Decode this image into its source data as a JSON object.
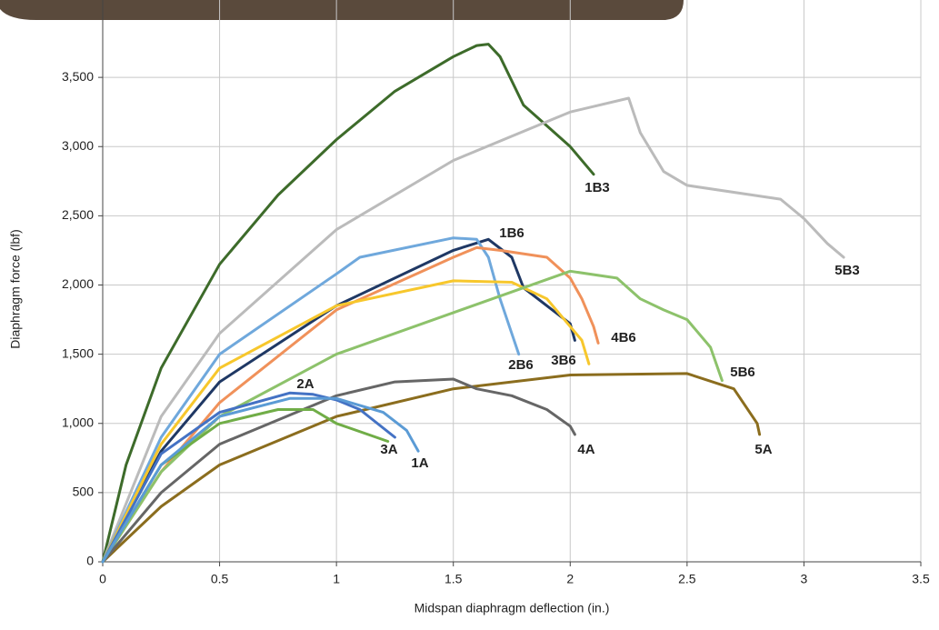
{
  "chart_data": {
    "type": "line",
    "xlabel": "Midspan diaphragm deflection (in.)",
    "ylabel": "Diaphragm force (lbf)",
    "xlim": [
      0,
      3.5
    ],
    "xticks": [
      0,
      0.5,
      1,
      1.5,
      2,
      2.5,
      3,
      3.5
    ],
    "ylim": [
      0,
      4000
    ],
    "yticks": [
      0,
      500,
      {
        "value": 1000,
        "label": "1,000"
      },
      {
        "value": 1500,
        "label": "1,500"
      },
      {
        "value": 2000,
        "label": "2,000"
      },
      {
        "value": 2500,
        "label": "2,500"
      },
      {
        "value": 3000,
        "label": "3,000"
      },
      {
        "value": 3500,
        "label": "3,500"
      }
    ],
    "grid": true,
    "series": [
      {
        "name": "1B3",
        "color": "#3d6b2a",
        "x": [
          0,
          0.1,
          0.25,
          0.5,
          0.75,
          1.0,
          1.25,
          1.5,
          1.6,
          1.65,
          1.7,
          1.8,
          1.9,
          2.0,
          2.1
        ],
        "values": [
          0,
          700,
          1400,
          2150,
          2650,
          3050,
          3400,
          3650,
          3730,
          3740,
          3650,
          3300,
          3150,
          3000,
          2800
        ]
      },
      {
        "name": "5B3",
        "color": "#bbbbbb",
        "x": [
          0,
          0.25,
          0.5,
          1,
          1.5,
          2,
          2.25,
          2.3,
          2.4,
          2.5,
          2.9,
          3.0,
          3.1,
          3.17
        ],
        "values": [
          0,
          1050,
          1650,
          2400,
          2900,
          3250,
          3350,
          3100,
          2820,
          2720,
          2620,
          2480,
          2300,
          2200
        ]
      },
      {
        "name": "1B6",
        "color": "#1f3864",
        "x": [
          0,
          0.25,
          0.5,
          1,
          1.5,
          1.65,
          1.75,
          1.8,
          1.9,
          2.0,
          2.02
        ],
        "values": [
          0,
          800,
          1300,
          1850,
          2250,
          2330,
          2200,
          1980,
          1850,
          1720,
          1600
        ]
      },
      {
        "name": "2B6",
        "color": "#6fa8dc",
        "x": [
          0,
          0.25,
          0.5,
          1,
          1.1,
          1.5,
          1.6,
          1.65,
          1.7,
          1.75,
          1.78
        ],
        "values": [
          0,
          900,
          1500,
          2080,
          2200,
          2340,
          2330,
          2200,
          1900,
          1650,
          1500
        ]
      },
      {
        "name": "4B6",
        "color": "#f0915a",
        "x": [
          0,
          0.25,
          0.5,
          1,
          1.5,
          1.6,
          1.7,
          1.9,
          2.0,
          2.05,
          2.1,
          2.12
        ],
        "values": [
          0,
          650,
          1150,
          1820,
          2200,
          2270,
          2250,
          2200,
          2050,
          1900,
          1700,
          1580
        ]
      },
      {
        "name": "3B6",
        "color": "#f7c72c",
        "x": [
          0,
          0.25,
          0.5,
          1,
          1.5,
          1.75,
          1.9,
          2.0,
          2.05,
          2.08
        ],
        "values": [
          0,
          850,
          1400,
          1850,
          2030,
          2020,
          1900,
          1700,
          1600,
          1430
        ]
      },
      {
        "name": "5B6",
        "color": "#8dc26b",
        "x": [
          0,
          0.25,
          0.5,
          1,
          1.5,
          2,
          2.2,
          2.3,
          2.4,
          2.5,
          2.6,
          2.65
        ],
        "values": [
          0,
          650,
          1050,
          1500,
          1800,
          2100,
          2050,
          1900,
          1820,
          1750,
          1550,
          1310
        ]
      },
      {
        "name": "5A",
        "color": "#8b6d1e",
        "x": [
          0,
          0.25,
          0.5,
          1,
          1.5,
          2,
          2.5,
          2.7,
          2.8,
          2.81
        ],
        "values": [
          0,
          400,
          700,
          1050,
          1250,
          1350,
          1360,
          1250,
          1000,
          920
        ]
      },
      {
        "name": "4A",
        "color": "#666666",
        "x": [
          0,
          0.25,
          0.5,
          1,
          1.25,
          1.5,
          1.6,
          1.75,
          1.9,
          2.0,
          2.02
        ],
        "values": [
          0,
          500,
          850,
          1200,
          1300,
          1320,
          1250,
          1200,
          1100,
          980,
          920
        ]
      },
      {
        "name": "2A",
        "color": "#4472c4",
        "x": [
          0,
          0.25,
          0.5,
          0.8,
          0.9,
          1.0,
          1.1,
          1.25
        ],
        "values": [
          0,
          780,
          1080,
          1220,
          1210,
          1170,
          1100,
          900
        ]
      },
      {
        "name": "3A",
        "color": "#70ad47",
        "x": [
          0,
          0.25,
          0.5,
          0.75,
          0.9,
          1.0,
          1.22
        ],
        "values": [
          0,
          700,
          1000,
          1100,
          1100,
          1000,
          870
        ]
      },
      {
        "name": "1A",
        "color": "#5b9bd5",
        "x": [
          0,
          0.25,
          0.5,
          0.8,
          1.0,
          1.2,
          1.3,
          1.35
        ],
        "values": [
          0,
          700,
          1050,
          1180,
          1180,
          1080,
          950,
          800
        ]
      }
    ]
  }
}
